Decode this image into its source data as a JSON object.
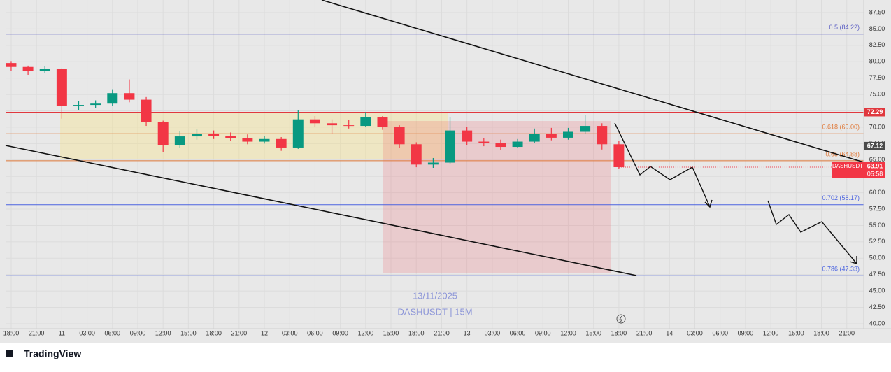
{
  "chart_data": {
    "type": "candlestick",
    "symbol": "DASHUSDT",
    "countdown": "05:58",
    "watermark": [
      "13/11/2025",
      "DASHUSDT | 15M"
    ],
    "brand": "TradingView",
    "up_color": "#089981",
    "down_color": "#f23645",
    "grid": true,
    "xlim": [
      -0.66,
      101.01
    ],
    "ylim": [
      39.25,
      89.42
    ],
    "xticks": [
      {
        "value": 0,
        "label": "18:00"
      },
      {
        "value": 3,
        "label": "21:00"
      },
      {
        "value": 6,
        "label": "11"
      },
      {
        "value": 9,
        "label": "03:00"
      },
      {
        "value": 12,
        "label": "06:00"
      },
      {
        "value": 15,
        "label": "09:00"
      },
      {
        "value": 18,
        "label": "12:00"
      },
      {
        "value": 21,
        "label": "15:00"
      },
      {
        "value": 24,
        "label": "18:00"
      },
      {
        "value": 27,
        "label": "21:00"
      },
      {
        "value": 30,
        "label": "12"
      },
      {
        "value": 33,
        "label": "03:00"
      },
      {
        "value": 36,
        "label": "06:00"
      },
      {
        "value": 39,
        "label": "09:00"
      },
      {
        "value": 42,
        "label": "12:00"
      },
      {
        "value": 45,
        "label": "15:00"
      },
      {
        "value": 48,
        "label": "18:00"
      },
      {
        "value": 51,
        "label": "21:00"
      },
      {
        "value": 54,
        "label": "13"
      },
      {
        "value": 57,
        "label": "03:00"
      },
      {
        "value": 60,
        "label": "06:00"
      },
      {
        "value": 63,
        "label": "09:00"
      },
      {
        "value": 66,
        "label": "12:00"
      },
      {
        "value": 69,
        "label": "15:00"
      },
      {
        "value": 72,
        "label": "18:00"
      },
      {
        "value": 75,
        "label": "21:00"
      },
      {
        "value": 78,
        "label": "14"
      },
      {
        "value": 81,
        "label": "03:00"
      },
      {
        "value": 84,
        "label": "06:00"
      },
      {
        "value": 87,
        "label": "09:00"
      },
      {
        "value": 90,
        "label": "12:00"
      },
      {
        "value": 93,
        "label": "15:00"
      },
      {
        "value": 96,
        "label": "18:00"
      },
      {
        "value": 99,
        "label": "21:00"
      }
    ],
    "yticks": [
      {
        "value": 40,
        "label": "40.00"
      },
      {
        "value": 42.5,
        "label": "42.50"
      },
      {
        "value": 45,
        "label": "45.00"
      },
      {
        "value": 47.5,
        "label": "47.50"
      },
      {
        "value": 50,
        "label": "50.00"
      },
      {
        "value": 52.5,
        "label": "52.50"
      },
      {
        "value": 55,
        "label": "55.00"
      },
      {
        "value": 57.5,
        "label": "57.50"
      },
      {
        "value": 60,
        "label": "60.00"
      },
      {
        "value": 62.5,
        "label": "62.50"
      },
      {
        "value": 65,
        "label": "65.00"
      },
      {
        "value": 67.5,
        "label": "67.50"
      },
      {
        "value": 70,
        "label": "70.00"
      },
      {
        "value": 72.5,
        "label": "72.50"
      },
      {
        "value": 75,
        "label": "75.00"
      },
      {
        "value": 77.5,
        "label": "77.50"
      },
      {
        "value": 80,
        "label": "80.00"
      },
      {
        "value": 82.5,
        "label": "82.50"
      },
      {
        "value": 85,
        "label": "85.00"
      },
      {
        "value": 87.5,
        "label": "87.50"
      }
    ],
    "x": [
      0,
      2,
      4,
      6,
      8,
      10,
      12,
      14,
      16,
      18,
      20,
      22,
      24,
      26,
      28,
      30,
      32,
      34,
      36,
      38,
      40,
      42,
      44,
      46,
      48,
      50,
      52,
      54,
      56,
      58,
      60,
      62,
      64,
      66,
      68,
      70,
      72
    ],
    "open": [
      79.8,
      79.2,
      78.6,
      78.9,
      73.2,
      73.4,
      73.6,
      75.2,
      74.2,
      70.8,
      67.3,
      68.6,
      69.0,
      68.7,
      68.3,
      67.8,
      68.2,
      66.9,
      71.2,
      70.6,
      70.3,
      70.2,
      71.5,
      70.0,
      67.4,
      64.3,
      64.6,
      69.5,
      67.8,
      67.6,
      67.0,
      67.8,
      69.0,
      68.4,
      69.3,
      70.2,
      67.4
    ],
    "high": [
      80.1,
      79.4,
      79.3,
      79.0,
      74.0,
      74.1,
      75.8,
      77.3,
      74.6,
      71.0,
      69.4,
      69.7,
      69.5,
      69.2,
      68.9,
      68.7,
      68.5,
      72.6,
      71.7,
      71.2,
      71.1,
      72.3,
      71.7,
      70.3,
      67.7,
      65.3,
      71.5,
      70.1,
      68.3,
      68.1,
      68.2,
      69.8,
      69.9,
      69.9,
      71.9,
      70.6,
      67.9
    ],
    "low": [
      78.6,
      78.0,
      78.3,
      71.3,
      72.6,
      72.9,
      73.3,
      73.8,
      70.2,
      66.2,
      66.9,
      68.1,
      68.2,
      67.9,
      67.4,
      67.5,
      66.4,
      66.7,
      70.1,
      69.0,
      69.8,
      70.0,
      69.6,
      66.8,
      63.9,
      63.8,
      64.4,
      67.3,
      67.1,
      66.5,
      66.8,
      67.6,
      68.0,
      68.1,
      69.0,
      66.6,
      63.6
    ],
    "close": [
      79.2,
      78.6,
      78.9,
      73.2,
      73.4,
      73.6,
      75.2,
      74.2,
      70.8,
      67.3,
      68.6,
      69.0,
      68.7,
      68.3,
      67.8,
      68.2,
      66.9,
      71.2,
      70.6,
      70.3,
      70.2,
      71.5,
      70.0,
      67.4,
      64.3,
      64.6,
      69.5,
      67.8,
      67.6,
      67.0,
      67.8,
      69.0,
      68.4,
      69.3,
      70.2,
      67.4,
      63.91
    ],
    "levels": [
      {
        "value": 84.22,
        "label": "0.5 (84.22)",
        "color": "#5c5fc4"
      },
      {
        "value": 72.29,
        "color": "#e0383e"
      },
      {
        "value": 69.0,
        "label": "0.618 (69.00)",
        "color": "#e07a3a"
      },
      {
        "value": 64.88,
        "label": "0.65 (64.88)",
        "color": "#e07a3a"
      },
      {
        "value": 58.17,
        "label": "0.702 (58.17)",
        "color": "#4a63e0"
      },
      {
        "value": 47.33,
        "label": "0.786 (47.33)",
        "color": "#4a63e0"
      }
    ],
    "price_tag": {
      "value": 67.12,
      "color": "#4a4a4a"
    }
  }
}
